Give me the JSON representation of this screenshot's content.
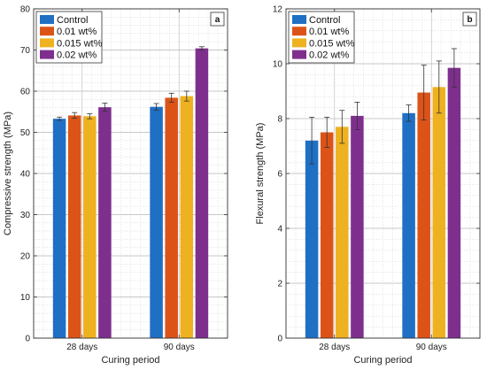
{
  "colors": {
    "Control": "#1f6fc4",
    "0.01 wt%": "#dc5318",
    "0.015 wt%": "#eeb120",
    "0.02 wt%": "#7e2f8e"
  },
  "chart_data": [
    {
      "type": "bar",
      "panel_label": "a",
      "categories": [
        "28 days",
        "90 days"
      ],
      "series": [
        {
          "name": "Control",
          "values": [
            53.3,
            56.2
          ],
          "errors": [
            0.4,
            0.8
          ]
        },
        {
          "name": "0.01 wt%",
          "values": [
            54.1,
            58.4
          ],
          "errors": [
            0.7,
            1.1
          ]
        },
        {
          "name": "0.015 wt%",
          "values": [
            53.9,
            58.8
          ],
          "errors": [
            0.6,
            1.2
          ]
        },
        {
          "name": "0.02 wt%",
          "values": [
            56.1,
            70.4
          ],
          "errors": [
            1.0,
            0.4
          ]
        }
      ],
      "xlabel": "Curing period",
      "ylabel": "Compressive strength (MPa)",
      "ylim": [
        0,
        80
      ],
      "yticks": [
        0,
        10,
        20,
        30,
        40,
        50,
        60,
        70,
        80
      ],
      "grid": true,
      "legend_position": "top-left"
    },
    {
      "type": "bar",
      "panel_label": "b",
      "categories": [
        "28 days",
        "90 days"
      ],
      "series": [
        {
          "name": "Control",
          "values": [
            7.2,
            8.2
          ],
          "errors": [
            0.85,
            0.3
          ]
        },
        {
          "name": "0.01 wt%",
          "values": [
            7.5,
            8.95
          ],
          "errors": [
            0.55,
            1.0
          ]
        },
        {
          "name": "0.015 wt%",
          "values": [
            7.7,
            9.15
          ],
          "errors": [
            0.6,
            0.95
          ]
        },
        {
          "name": "0.02 wt%",
          "values": [
            8.1,
            9.85
          ],
          "errors": [
            0.5,
            0.7
          ]
        }
      ],
      "xlabel": "Curing period",
      "ylabel": "Flexural strength (MPa)",
      "ylim": [
        0,
        12
      ],
      "yticks": [
        0,
        2,
        4,
        6,
        8,
        10,
        12
      ],
      "grid": true,
      "legend_position": "top-left"
    }
  ]
}
